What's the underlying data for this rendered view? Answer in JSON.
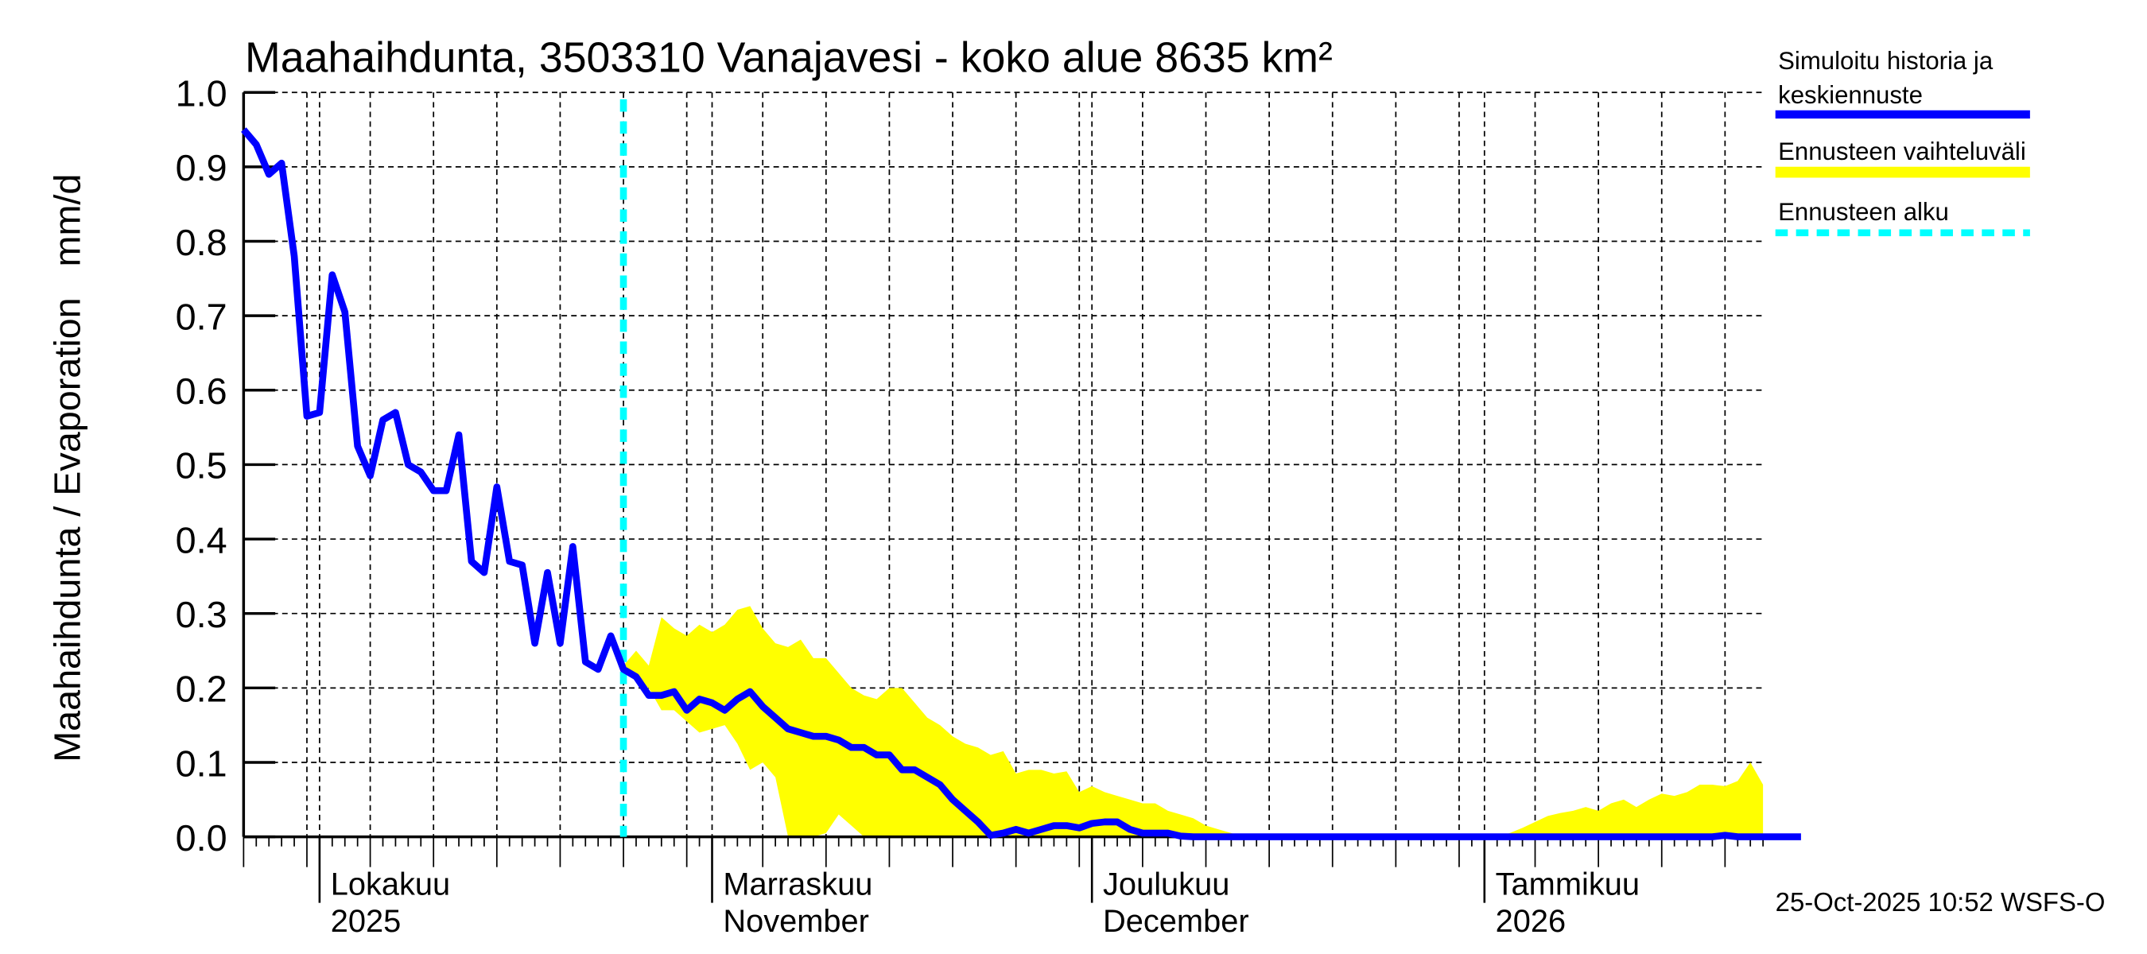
{
  "chart_data": {
    "type": "line",
    "title": "Maahaihdunta, 3503310 Vanajavesi - koko alue 8635 km²",
    "ylabel": "Maahaihdunta / Evaporation   mm/d",
    "ylim": [
      0,
      1.0
    ],
    "yticks": [
      "0.0",
      "0.1",
      "0.2",
      "0.3",
      "0.4",
      "0.5",
      "0.6",
      "0.7",
      "0.8",
      "0.9",
      "1.0"
    ],
    "grid": true,
    "x_start_date": "2025-09-25",
    "x_end_date": "2026-01-22",
    "forecast_start_date": "2025-10-25",
    "month_labels": [
      {
        "date": "2025-10-01",
        "line1": "Lokakuu",
        "line2": "2025"
      },
      {
        "date": "2025-11-01",
        "line1": "Marraskuu",
        "line2": "November"
      },
      {
        "date": "2025-12-01",
        "line1": "Joulukuu",
        "line2": "December"
      },
      {
        "date": "2026-01-01",
        "line1": "Tammikuu",
        "line2": "2026"
      }
    ],
    "legend_placement": "right",
    "series": [
      {
        "name": "Simuloitu historia ja keskiennuste",
        "color": "#0000ff",
        "values": [
          0.95,
          0.93,
          0.89,
          0.905,
          0.78,
          0.565,
          0.57,
          0.755,
          0.705,
          0.525,
          0.485,
          0.56,
          0.57,
          0.5,
          0.49,
          0.465,
          0.465,
          0.54,
          0.37,
          0.355,
          0.47,
          0.37,
          0.365,
          0.26,
          0.355,
          0.26,
          0.39,
          0.235,
          0.225,
          0.27,
          0.225,
          0.215,
          0.19,
          0.19,
          0.195,
          0.17,
          0.185,
          0.18,
          0.17,
          0.185,
          0.195,
          0.175,
          0.16,
          0.145,
          0.14,
          0.135,
          0.135,
          0.13,
          0.12,
          0.12,
          0.11,
          0.11,
          0.09,
          0.09,
          0.08,
          0.07,
          0.05,
          0.035,
          0.02,
          0.002,
          0.005,
          0.01,
          0.005,
          0.01,
          0.015,
          0.015,
          0.012,
          0.018,
          0.02,
          0.02,
          0.01,
          0.005,
          0.005,
          0.005,
          0.001,
          0,
          0,
          0,
          0,
          0,
          0,
          0,
          0,
          0,
          0,
          0,
          0,
          0,
          0,
          0,
          0,
          0,
          0,
          0,
          0,
          0,
          0,
          0,
          0,
          0,
          0,
          0,
          0,
          0,
          0,
          0,
          0,
          0,
          0,
          0,
          0,
          0,
          0,
          0,
          0,
          0,
          0,
          0.002,
          0,
          0,
          0,
          0,
          0,
          0
        ]
      },
      {
        "name": "Ennusteen vaihteluväli",
        "color": "#ffff00",
        "start_index": 30,
        "upper": [
          0.23,
          0.25,
          0.23,
          0.295,
          0.28,
          0.27,
          0.285,
          0.275,
          0.285,
          0.305,
          0.31,
          0.28,
          0.26,
          0.255,
          0.265,
          0.24,
          0.24,
          0.22,
          0.2,
          0.19,
          0.185,
          0.2,
          0.2,
          0.18,
          0.16,
          0.15,
          0.135,
          0.125,
          0.12,
          0.11,
          0.115,
          0.085,
          0.09,
          0.09,
          0.085,
          0.088,
          0.06,
          0.068,
          0.06,
          0.055,
          0.05,
          0.045,
          0.045,
          0.035,
          0.03,
          0.025,
          0.015,
          0.01,
          0.005,
          0,
          0,
          0,
          0,
          0,
          0,
          0,
          0,
          0,
          0,
          0,
          0,
          0,
          0,
          0,
          0,
          0,
          0,
          0,
          0,
          0,
          0.005,
          0.012,
          0.02,
          0.028,
          0.032,
          0.035,
          0.04,
          0.035,
          0.045,
          0.05,
          0.04,
          0.05,
          0.058,
          0.055,
          0.06,
          0.07,
          0.07,
          0.068,
          0.075,
          0.1,
          0.07
        ],
        "lower": [
          0.22,
          0.21,
          0.2,
          0.17,
          0.17,
          0.155,
          0.14,
          0.145,
          0.15,
          0.125,
          0.09,
          0.1,
          0.08,
          0,
          0,
          0,
          0.005,
          0.03,
          0.015,
          0,
          0,
          0,
          0,
          0,
          0,
          0,
          0,
          0,
          0,
          0,
          0,
          0,
          0,
          0,
          0,
          0,
          0,
          0,
          0,
          0,
          0,
          0,
          0,
          0,
          0,
          0,
          0,
          0,
          0,
          0,
          0,
          0,
          0,
          0,
          0,
          0,
          0,
          0,
          0,
          0,
          0,
          0,
          0,
          0,
          0,
          0,
          0,
          0,
          0,
          0,
          0,
          0,
          0,
          0,
          0,
          0,
          0,
          0,
          0,
          0,
          0,
          0,
          0,
          0,
          0,
          0,
          0,
          0,
          0,
          0,
          0
        ]
      },
      {
        "name": "Ennusteen alku",
        "color": "#00ffff"
      }
    ],
    "legend": [
      {
        "line1": "Simuloitu historia ja",
        "line2": "keskiennuste",
        "color": "#0000ff"
      },
      {
        "line1": "Ennusteen vaihteluväli",
        "color": "#ffff00"
      },
      {
        "line1": "Ennusteen alku",
        "color": "#00ffff"
      }
    ],
    "footer": "25-Oct-2025 10:52 WSFS-O"
  }
}
